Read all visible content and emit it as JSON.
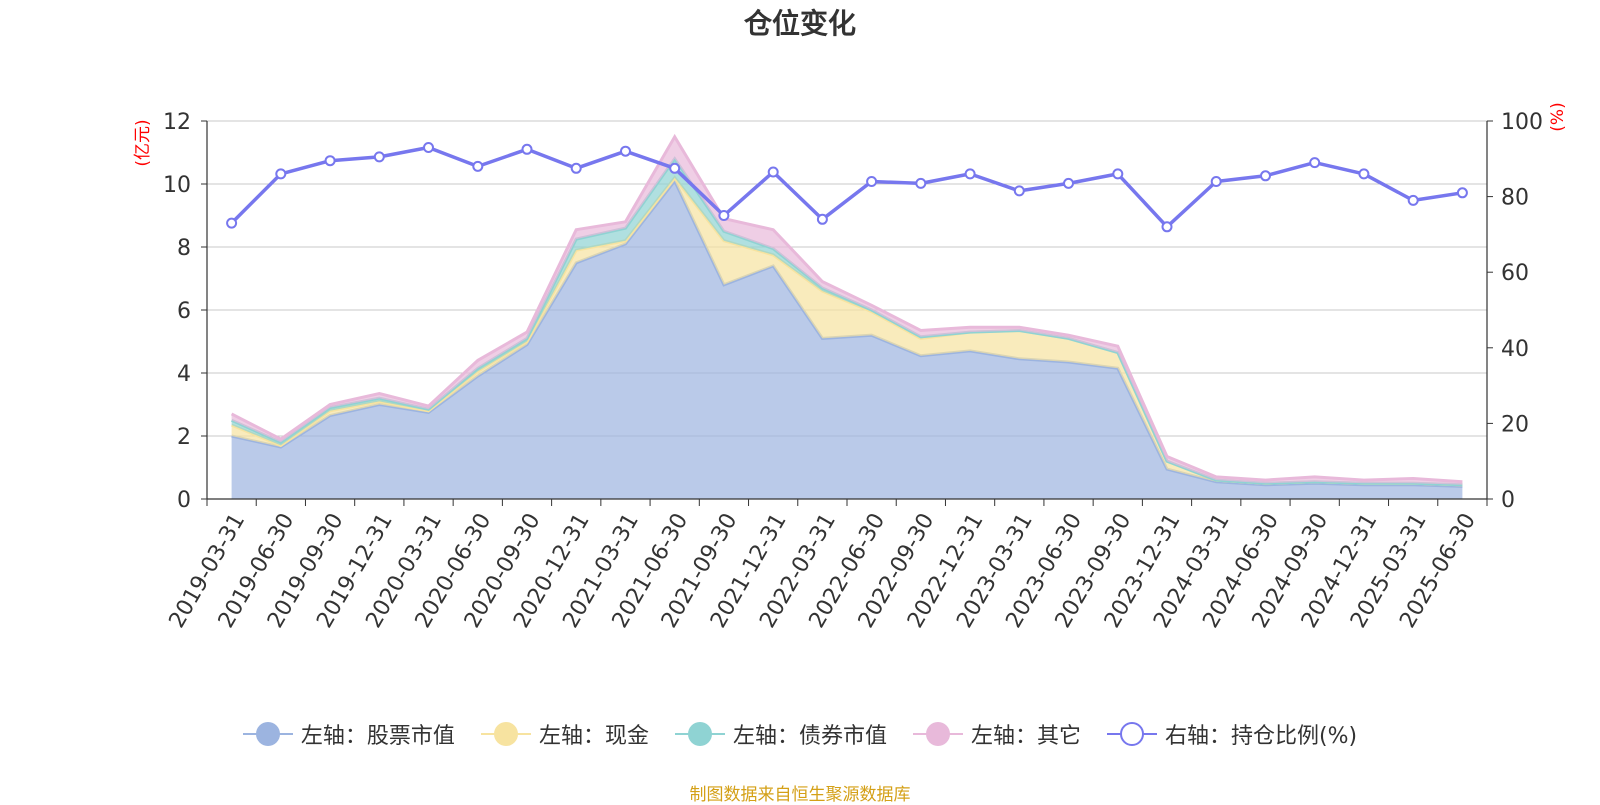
{
  "chart_data": {
    "type": "area",
    "title": "仓位变化",
    "y_left_label": "(亿元)",
    "y_right_label": "(%)",
    "y_left_ticks": [
      "0",
      "2",
      "4",
      "6",
      "8",
      "10",
      "12"
    ],
    "y_right_ticks": [
      "0",
      "20",
      "40",
      "60",
      "80",
      "100"
    ],
    "ylim_left": [
      0,
      12
    ],
    "ylim_right": [
      0,
      100
    ],
    "stacked": true,
    "categories": [
      "2019-03-31",
      "2019-06-30",
      "2019-09-30",
      "2019-12-31",
      "2020-03-31",
      "2020-06-30",
      "2020-09-30",
      "2020-12-31",
      "2021-03-31",
      "2021-06-30",
      "2021-09-30",
      "2021-12-31",
      "2022-03-31",
      "2022-06-30",
      "2022-09-30",
      "2022-12-31",
      "2023-03-31",
      "2023-06-30",
      "2023-09-30",
      "2023-12-31",
      "2024-03-31",
      "2024-06-30",
      "2024-09-30",
      "2024-12-31",
      "2025-03-31",
      "2025-06-30"
    ],
    "series": [
      {
        "name": "左轴：股票市值",
        "axis": "left",
        "color": "#9cb4e0",
        "values": [
          2.0,
          1.65,
          2.65,
          3.0,
          2.75,
          3.9,
          4.9,
          7.5,
          8.1,
          10.1,
          6.8,
          7.4,
          5.1,
          5.2,
          4.55,
          4.7,
          4.45,
          4.35,
          4.15,
          0.95,
          0.55,
          0.45,
          0.5,
          0.45,
          0.45,
          0.4
        ]
      },
      {
        "name": "左轴：现金",
        "axis": "left",
        "color": "#f7e3a0",
        "values": [
          0.35,
          0.05,
          0.15,
          0.1,
          0.05,
          0.15,
          0.1,
          0.4,
          0.1,
          0.1,
          1.4,
          0.35,
          1.5,
          0.75,
          0.55,
          0.6,
          0.9,
          0.75,
          0.5,
          0.25,
          0.05,
          0.05,
          0.05,
          0.05,
          0.05,
          0.05
        ]
      },
      {
        "name": "左轴：债券市值",
        "axis": "left",
        "color": "#8fd3d3",
        "values": [
          0.15,
          0.1,
          0.1,
          0.1,
          0.05,
          0.1,
          0.1,
          0.35,
          0.4,
          0.6,
          0.3,
          0.2,
          0.1,
          0.05,
          0.05,
          0.0,
          0.0,
          0.0,
          0.0,
          0.0,
          0.0,
          0.0,
          0.0,
          0.0,
          0.0,
          0.0
        ]
      },
      {
        "name": "左轴：其它",
        "axis": "left",
        "color": "#e8b9da",
        "values": [
          0.2,
          0.1,
          0.1,
          0.15,
          0.1,
          0.25,
          0.2,
          0.3,
          0.2,
          0.7,
          0.4,
          0.6,
          0.2,
          0.15,
          0.2,
          0.15,
          0.1,
          0.1,
          0.2,
          0.15,
          0.1,
          0.1,
          0.15,
          0.1,
          0.15,
          0.1
        ]
      },
      {
        "name": "右轴：持仓比例(%)",
        "axis": "right",
        "type": "line",
        "color": "#7777ee",
        "values": [
          73,
          86,
          89.5,
          90.5,
          93,
          88,
          92.5,
          87.5,
          92,
          87.5,
          75,
          86.5,
          74,
          84,
          83.5,
          86,
          81.5,
          83.5,
          86,
          72,
          84,
          85.5,
          89,
          86,
          79,
          81
        ]
      }
    ],
    "grid": true,
    "legend_position": "bottom"
  },
  "source_text": "制图数据来自恒生聚源数据库"
}
